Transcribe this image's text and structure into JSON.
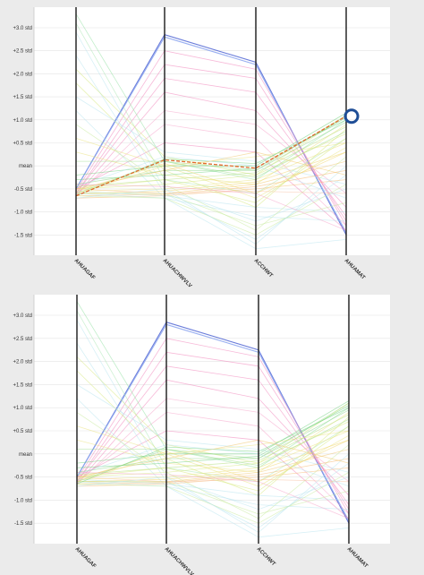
{
  "chart_data": [
    {
      "type": "parallel-coordinates",
      "axes": [
        "AHUAGAF",
        "AHUACHWVLV",
        "ACCHWT",
        "AHUAMAT"
      ],
      "y_ticks": [
        "+3.0 std",
        "+2.5 std",
        "+2.0 std",
        "+1.5 std",
        "+1.0 std",
        "+0.5 std",
        "mean",
        "-0.5 std",
        "-1.0 std",
        "-1.5 std"
      ],
      "y_tick_values": [
        3.0,
        2.5,
        2.0,
        1.5,
        1.0,
        0.5,
        0.0,
        -0.5,
        -1.0,
        -1.5
      ],
      "ylim": [
        -1.9,
        3.4
      ],
      "grid": true,
      "highlight": {
        "values": [
          -0.65,
          0.13,
          -0.05,
          1.08
        ],
        "color": "#e06a2a",
        "dashed": true
      },
      "marker": {
        "axis": "AHUAMAT",
        "value": 1.08,
        "color": "#1f4e96"
      },
      "series": [
        {
          "values": [
            -0.5,
            2.85,
            2.25,
            -1.5
          ],
          "color": "#5b6fd6"
        },
        {
          "values": [
            -0.5,
            2.8,
            2.2,
            -1.45
          ],
          "color": "#8fa7f0"
        },
        {
          "values": [
            -0.55,
            2.5,
            2.1,
            -1.3
          ],
          "color": "#f07fb8"
        },
        {
          "values": [
            -0.6,
            2.2,
            1.9,
            -1.2
          ],
          "color": "#f07fb8"
        },
        {
          "values": [
            -0.6,
            1.9,
            1.6,
            -1.1
          ],
          "color": "#f07fb8"
        },
        {
          "values": [
            -0.65,
            1.6,
            1.2,
            -0.9
          ],
          "color": "#f07fb8"
        },
        {
          "values": [
            -0.65,
            1.2,
            0.9,
            -0.6
          ],
          "color": "#f5a0c8"
        },
        {
          "values": [
            -0.6,
            0.9,
            0.6,
            -1.3
          ],
          "color": "#f5a0c8"
        },
        {
          "values": [
            -0.5,
            0.5,
            0.3,
            -1.4
          ],
          "color": "#f07fb8"
        },
        {
          "values": [
            3.3,
            0.1,
            -0.3,
            1.0
          ],
          "color": "#8fe0a0"
        },
        {
          "values": [
            3.1,
            -0.3,
            -0.6,
            0.6
          ],
          "color": "#a8e6b0"
        },
        {
          "values": [
            2.9,
            -0.5,
            -1.2,
            -0.5
          ],
          "color": "#b6e3ef"
        },
        {
          "values": [
            2.4,
            -0.6,
            -1.6,
            -0.2
          ],
          "color": "#b6e3ef"
        },
        {
          "values": [
            2.1,
            0.2,
            -0.2,
            1.1
          ],
          "color": "#d6e87a"
        },
        {
          "values": [
            1.8,
            -0.1,
            -0.9,
            0.8
          ],
          "color": "#d6e87a"
        },
        {
          "values": [
            1.5,
            0.3,
            0.1,
            -0.4
          ],
          "color": "#b6e3ef"
        },
        {
          "values": [
            1.2,
            -0.7,
            -1.8,
            -1.6
          ],
          "color": "#b6e3ef"
        },
        {
          "values": [
            0.9,
            -0.4,
            -1.4,
            0.2
          ],
          "color": "#c7ea9a"
        },
        {
          "values": [
            0.6,
            0.0,
            -0.7,
            0.4
          ],
          "color": "#e9e27a"
        },
        {
          "values": [
            0.3,
            -0.2,
            -0.4,
            0.9
          ],
          "color": "#e9e27a"
        },
        {
          "values": [
            0.1,
            0.1,
            -0.1,
            1.1
          ],
          "color": "#9edc8a"
        },
        {
          "values": [
            -0.2,
            0.0,
            0.0,
            1.15
          ],
          "color": "#6ccf7a"
        },
        {
          "values": [
            -0.3,
            -0.2,
            -0.05,
            1.05
          ],
          "color": "#6ccf7a"
        },
        {
          "values": [
            -0.4,
            -0.1,
            -0.1,
            0.95
          ],
          "color": "#8fd68a"
        },
        {
          "values": [
            -0.45,
            -0.3,
            -0.15,
            0.85
          ],
          "color": "#b3df7a"
        },
        {
          "values": [
            -0.5,
            -0.4,
            -0.2,
            0.7
          ],
          "color": "#d6e87a"
        },
        {
          "values": [
            -0.55,
            -0.5,
            -0.3,
            0.5
          ],
          "color": "#e9e27a"
        },
        {
          "values": [
            -0.6,
            -0.55,
            -0.35,
            0.3
          ],
          "color": "#f1d66a"
        },
        {
          "values": [
            -0.6,
            -0.6,
            -0.4,
            0.1
          ],
          "color": "#f1c56a"
        },
        {
          "values": [
            -0.65,
            -0.62,
            -0.45,
            -0.1
          ],
          "color": "#f5b870"
        },
        {
          "values": [
            -0.7,
            -0.65,
            -0.5,
            -0.3
          ],
          "color": "#f5b870"
        },
        {
          "values": [
            -0.5,
            -0.6,
            -0.55,
            -0.6
          ],
          "color": "#f7c0a0"
        },
        {
          "values": [
            -0.55,
            -0.65,
            -0.9,
            -1.0
          ],
          "color": "#b6e3ef"
        },
        {
          "values": [
            -0.6,
            -0.7,
            -1.1,
            -1.2
          ],
          "color": "#b6e3ef"
        },
        {
          "values": [
            -0.6,
            -0.6,
            -1.3,
            -0.8
          ],
          "color": "#c7ea9a"
        },
        {
          "values": [
            -0.65,
            -0.7,
            -1.5,
            -0.4
          ],
          "color": "#c7ea9a"
        },
        {
          "values": [
            -0.7,
            -0.5,
            -1.7,
            0.0
          ],
          "color": "#b6e3ef"
        },
        {
          "values": [
            -0.5,
            -0.3,
            -0.8,
            0.6
          ],
          "color": "#d6e87a"
        },
        {
          "values": [
            -0.55,
            0.05,
            -0.6,
            0.3
          ],
          "color": "#f1d66a"
        },
        {
          "values": [
            -0.6,
            0.1,
            -0.25,
            0.75
          ],
          "color": "#9edc8a"
        },
        {
          "values": [
            -0.65,
            0.15,
            0.05,
            1.0
          ],
          "color": "#6ccf7a"
        },
        {
          "values": [
            -0.6,
            0.0,
            0.2,
            0.5
          ],
          "color": "#e9e27a"
        },
        {
          "values": [
            -0.5,
            -0.1,
            0.3,
            -0.2
          ],
          "color": "#f1c56a"
        },
        {
          "values": [
            -0.45,
            0.2,
            0.0,
            -0.7
          ],
          "color": "#b6e3ef"
        },
        {
          "values": [
            -0.4,
            -0.45,
            -0.6,
            -1.4
          ],
          "color": "#f5a0c8"
        }
      ]
    },
    {
      "type": "parallel-coordinates",
      "axes": [
        "AHUAGAF",
        "AHUACHWVLV",
        "ACCHWT",
        "AHUAMAT"
      ],
      "y_ticks": [
        "+3.0 std",
        "+2.5 std",
        "+2.0 std",
        "+1.5 std",
        "+1.0 std",
        "+0.5 std",
        "mean",
        "-0.5 std",
        "-1.0 std",
        "-1.5 std"
      ],
      "y_tick_values": [
        3.0,
        2.5,
        2.0,
        1.5,
        1.0,
        0.5,
        0.0,
        -0.5,
        -1.0,
        -1.5
      ],
      "ylim": [
        -1.9,
        3.4
      ],
      "grid": true,
      "series": [
        {
          "values": [
            -0.5,
            2.85,
            2.25,
            -1.5
          ],
          "color": "#5b6fd6"
        },
        {
          "values": [
            -0.5,
            2.8,
            2.2,
            -1.45
          ],
          "color": "#8fa7f0"
        },
        {
          "values": [
            -0.55,
            2.5,
            2.1,
            -1.3
          ],
          "color": "#f07fb8"
        },
        {
          "values": [
            -0.6,
            2.2,
            1.9,
            -1.2
          ],
          "color": "#f07fb8"
        },
        {
          "values": [
            -0.6,
            1.9,
            1.6,
            -1.1
          ],
          "color": "#f07fb8"
        },
        {
          "values": [
            -0.65,
            1.6,
            1.2,
            -0.9
          ],
          "color": "#f07fb8"
        },
        {
          "values": [
            -0.65,
            1.2,
            0.9,
            -0.6
          ],
          "color": "#f5a0c8"
        },
        {
          "values": [
            -0.6,
            0.9,
            0.6,
            -1.3
          ],
          "color": "#f5a0c8"
        },
        {
          "values": [
            -0.5,
            0.5,
            0.3,
            -1.4
          ],
          "color": "#f07fb8"
        },
        {
          "values": [
            3.3,
            0.1,
            -0.3,
            1.0
          ],
          "color": "#8fe0a0"
        },
        {
          "values": [
            3.1,
            -0.3,
            -0.6,
            0.6
          ],
          "color": "#a8e6b0"
        },
        {
          "values": [
            2.9,
            -0.5,
            -1.2,
            -0.5
          ],
          "color": "#b6e3ef"
        },
        {
          "values": [
            2.4,
            -0.6,
            -1.6,
            -0.2
          ],
          "color": "#b6e3ef"
        },
        {
          "values": [
            2.1,
            0.2,
            -0.2,
            1.1
          ],
          "color": "#d6e87a"
        },
        {
          "values": [
            1.8,
            -0.1,
            -0.9,
            0.8
          ],
          "color": "#d6e87a"
        },
        {
          "values": [
            1.5,
            0.3,
            0.1,
            -0.4
          ],
          "color": "#b6e3ef"
        },
        {
          "values": [
            1.2,
            -0.7,
            -1.8,
            -1.6
          ],
          "color": "#b6e3ef"
        },
        {
          "values": [
            0.9,
            -0.4,
            -1.4,
            0.2
          ],
          "color": "#c7ea9a"
        },
        {
          "values": [
            0.6,
            0.0,
            -0.7,
            0.4
          ],
          "color": "#e9e27a"
        },
        {
          "values": [
            0.3,
            -0.2,
            -0.4,
            0.9
          ],
          "color": "#e9e27a"
        },
        {
          "values": [
            0.1,
            0.1,
            -0.1,
            1.1
          ],
          "color": "#9edc8a"
        },
        {
          "values": [
            -0.2,
            0.0,
            0.0,
            1.15
          ],
          "color": "#6ccf7a"
        },
        {
          "values": [
            -0.3,
            -0.2,
            -0.05,
            1.05
          ],
          "color": "#6ccf7a"
        },
        {
          "values": [
            -0.4,
            -0.1,
            -0.1,
            0.95
          ],
          "color": "#8fd68a"
        },
        {
          "values": [
            -0.45,
            -0.3,
            -0.15,
            0.85
          ],
          "color": "#b3df7a"
        },
        {
          "values": [
            -0.5,
            -0.4,
            -0.2,
            0.7
          ],
          "color": "#d6e87a"
        },
        {
          "values": [
            -0.55,
            -0.5,
            -0.3,
            0.5
          ],
          "color": "#e9e27a"
        },
        {
          "values": [
            -0.6,
            -0.55,
            -0.35,
            0.3
          ],
          "color": "#f1d66a"
        },
        {
          "values": [
            -0.6,
            -0.6,
            -0.4,
            0.1
          ],
          "color": "#f1c56a"
        },
        {
          "values": [
            -0.65,
            -0.62,
            -0.45,
            -0.1
          ],
          "color": "#f5b870"
        },
        {
          "values": [
            -0.7,
            -0.65,
            -0.5,
            -0.3
          ],
          "color": "#f5b870"
        },
        {
          "values": [
            -0.5,
            -0.6,
            -0.55,
            -0.6
          ],
          "color": "#f7c0a0"
        },
        {
          "values": [
            -0.55,
            -0.65,
            -0.9,
            -1.0
          ],
          "color": "#b6e3ef"
        },
        {
          "values": [
            -0.6,
            -0.7,
            -1.1,
            -1.2
          ],
          "color": "#b6e3ef"
        },
        {
          "values": [
            -0.6,
            -0.6,
            -1.3,
            -0.8
          ],
          "color": "#c7ea9a"
        },
        {
          "values": [
            -0.65,
            -0.7,
            -1.5,
            -0.4
          ],
          "color": "#c7ea9a"
        },
        {
          "values": [
            -0.7,
            -0.5,
            -1.7,
            0.0
          ],
          "color": "#b6e3ef"
        },
        {
          "values": [
            -0.5,
            -0.3,
            -0.8,
            0.6
          ],
          "color": "#d6e87a"
        },
        {
          "values": [
            -0.55,
            0.05,
            -0.6,
            0.3
          ],
          "color": "#f1d66a"
        },
        {
          "values": [
            -0.6,
            0.1,
            -0.25,
            0.75
          ],
          "color": "#9edc8a"
        },
        {
          "values": [
            -0.65,
            0.15,
            0.05,
            1.0
          ],
          "color": "#6ccf7a"
        },
        {
          "values": [
            -0.6,
            0.0,
            0.2,
            0.5
          ],
          "color": "#e9e27a"
        },
        {
          "values": [
            -0.5,
            -0.1,
            0.3,
            -0.2
          ],
          "color": "#f1c56a"
        },
        {
          "values": [
            -0.45,
            0.2,
            0.0,
            -0.7
          ],
          "color": "#b6e3ef"
        },
        {
          "values": [
            -0.4,
            -0.45,
            -0.6,
            -1.4
          ],
          "color": "#f5a0c8"
        }
      ]
    }
  ]
}
